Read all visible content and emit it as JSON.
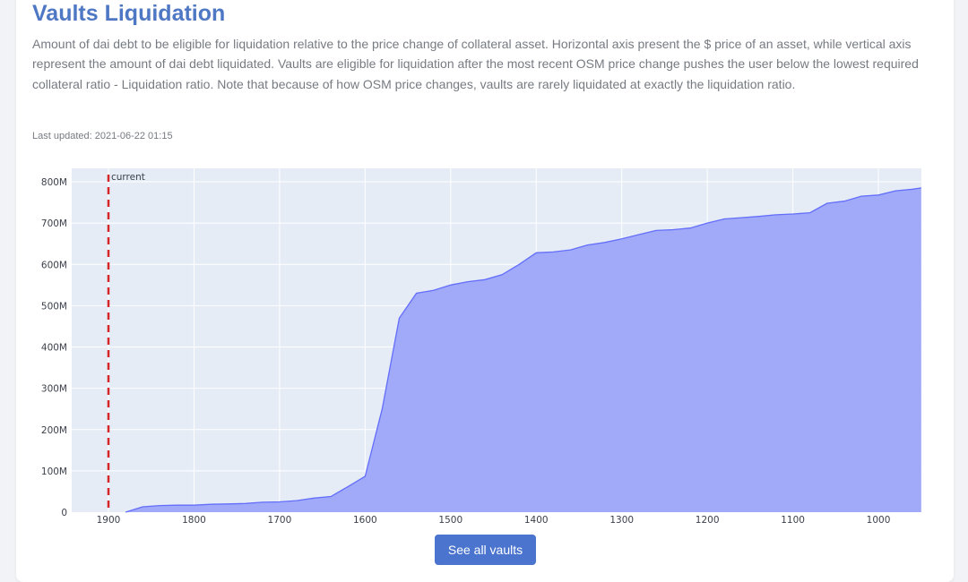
{
  "header": {
    "title": "Vaults Liquidation",
    "description": "Amount of dai debt to be eligible for liquidation relative to the price change of collateral asset. Horizontal axis present the $ price of an asset, while vertical axis represent the amount of dai debt liquidated. Vaults are eligible for liquidation after the most recent OSM price change pushes the user below the lowest required collateral ratio - Liquidation ratio. Note that because of how OSM price changes, vaults are rarely liquidated at exactly the liquidation ratio.",
    "last_updated": "Last updated: 2021-06-22 01:15"
  },
  "actions": {
    "see_all_label": "See all vaults"
  },
  "colors": {
    "plot_bg": "#e5ecf6",
    "grid": "#ffffff",
    "area_fill": "#a1a9f9",
    "area_line": "#636efa",
    "marker_line": "#d62728",
    "button_bg": "#4a74cd",
    "title": "#4f78c4"
  },
  "chart_data": {
    "type": "area",
    "title": "",
    "xlabel": "",
    "ylabel": "",
    "x_reversed": true,
    "xlim": [
      1900,
      950
    ],
    "ylim": [
      0,
      800000000
    ],
    "x_ticks": [
      1900,
      1800,
      1700,
      1600,
      1500,
      1400,
      1300,
      1200,
      1100,
      1000
    ],
    "x_tick_labels": [
      "1900",
      "1800",
      "1700",
      "1600",
      "1500",
      "1400",
      "1300",
      "1200",
      "1100",
      "1000"
    ],
    "y_ticks": [
      0,
      100000000,
      200000000,
      300000000,
      400000000,
      500000000,
      600000000,
      700000000,
      800000000
    ],
    "y_tick_labels": [
      "0",
      "100M",
      "200M",
      "300M",
      "400M",
      "500M",
      "600M",
      "700M",
      "800M"
    ],
    "grid": true,
    "reference_line": {
      "x": 1900,
      "label": "current",
      "style": "dashed"
    },
    "series": [
      {
        "x": [
          1880,
          1860,
          1840,
          1820,
          1800,
          1780,
          1760,
          1740,
          1720,
          1700,
          1680,
          1660,
          1640,
          1620,
          1600,
          1580,
          1560,
          1540,
          1520,
          1500,
          1480,
          1460,
          1440,
          1420,
          1400,
          1380,
          1360,
          1340,
          1320,
          1300,
          1280,
          1260,
          1240,
          1220,
          1200,
          1180,
          1160,
          1140,
          1120,
          1100,
          1080,
          1060,
          1040,
          1020,
          1000,
          980,
          960,
          950
        ],
        "values": [
          0,
          13000000,
          16000000,
          17000000,
          17000000,
          19000000,
          20000000,
          21000000,
          24000000,
          25000000,
          28000000,
          34000000,
          38000000,
          62000000,
          87000000,
          250000000,
          470000000,
          530000000,
          537000000,
          550000000,
          558000000,
          563000000,
          575000000,
          600000000,
          628000000,
          630000000,
          635000000,
          647000000,
          653000000,
          662000000,
          672000000,
          682000000,
          684000000,
          688000000,
          700000000,
          710000000,
          713000000,
          716000000,
          720000000,
          722000000,
          725000000,
          748000000,
          753000000,
          765000000,
          768000000,
          778000000,
          782000000,
          785000000
        ]
      }
    ]
  }
}
